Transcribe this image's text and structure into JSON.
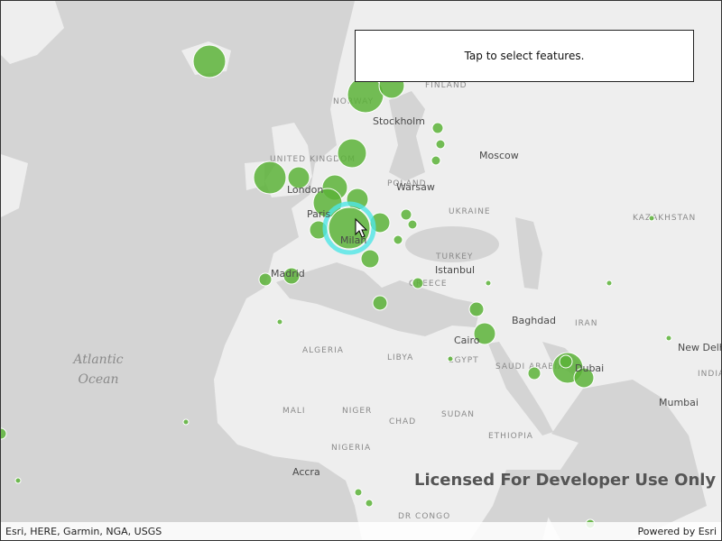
{
  "callout": "Tap to select features.",
  "license": "Licensed For Developer Use Only",
  "attribution": {
    "sources": "Esri, HERE, Garmin, NGA, USGS",
    "powered_by": "Powered by Esri"
  },
  "ocean": [
    "Atlantic",
    "Ocean"
  ],
  "countries": [
    "FINLAND",
    "NORWAY",
    "UNITED KINGDOM",
    "POLAND",
    "UKRAINE",
    "KAZAKHSTAN",
    "TURKEY",
    "GREECE",
    "IRAN",
    "SAUDI ARABIA",
    "EGYPT",
    "LIBYA",
    "ALGERIA",
    "MALI",
    "NIGER",
    "CHAD",
    "SUDAN",
    "NIGERIA",
    "ETHIOPIA",
    "DR CONGO",
    "INDIA"
  ],
  "places": [
    "Stockholm",
    "Moscow",
    "London",
    "Warsaw",
    "Paris",
    "Milan",
    "Madrid",
    "Istanbul",
    "Baghdad",
    "Cairo",
    "Dubai",
    "New Delhi",
    "Mumbai",
    "Accra"
  ]
}
